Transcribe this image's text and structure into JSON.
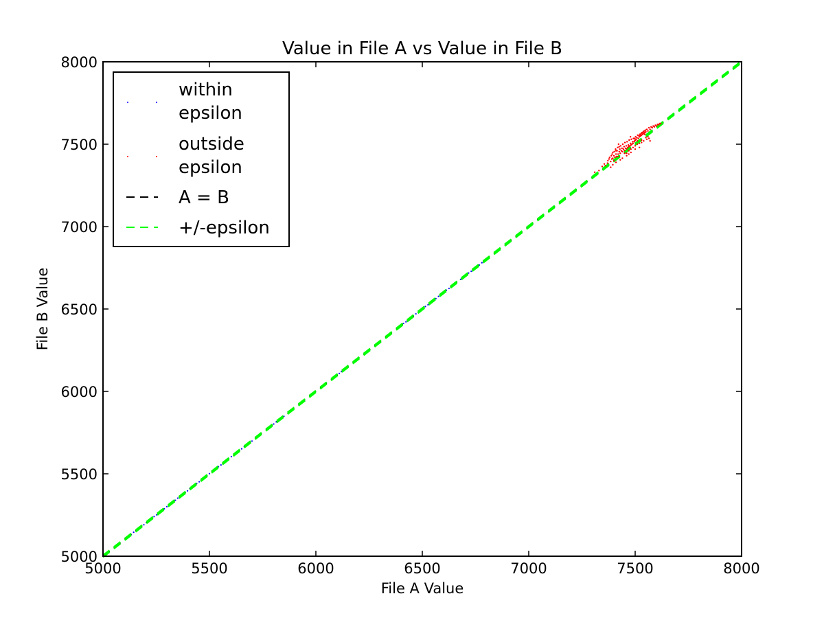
{
  "chart_data": {
    "type": "scatter",
    "title": "Value in File A vs Value in File B",
    "xlabel": "File A Value",
    "ylabel": "File B Value",
    "xlim": [
      5000,
      8000
    ],
    "ylim": [
      5000,
      8000
    ],
    "xticks": [
      5000,
      5500,
      6000,
      6500,
      7000,
      7500,
      8000
    ],
    "yticks": [
      5000,
      5500,
      6000,
      6500,
      7000,
      7500,
      8000
    ],
    "grid": false,
    "legend_position": "top-left",
    "series": [
      {
        "name": "within epsilon",
        "kind": "points",
        "color": "#0000ff",
        "segments": [
          [
            5120,
            5180
          ],
          [
            5180,
            5300
          ],
          [
            5340,
            5420
          ],
          [
            5440,
            5500
          ],
          [
            5530,
            5700
          ],
          [
            5790,
            5850
          ],
          [
            6100,
            6120
          ],
          [
            6400,
            6470
          ],
          [
            6490,
            6650
          ],
          [
            6680,
            6780
          ],
          [
            7100,
            7120
          ],
          [
            7300,
            7320
          ]
        ]
      },
      {
        "name": "outside epsilon",
        "kind": "points",
        "color": "#ff0000",
        "points": [
          [
            7310,
            7330
          ],
          [
            7330,
            7340
          ],
          [
            7345,
            7365
          ],
          [
            7355,
            7380
          ],
          [
            7360,
            7370
          ],
          [
            7370,
            7385
          ],
          [
            7372,
            7400
          ],
          [
            7380,
            7420
          ],
          [
            7385,
            7395
          ],
          [
            7390,
            7410
          ],
          [
            7392,
            7440
          ],
          [
            7395,
            7415
          ],
          [
            7400,
            7430
          ],
          [
            7402,
            7455
          ],
          [
            7405,
            7420
          ],
          [
            7408,
            7470
          ],
          [
            7410,
            7440
          ],
          [
            7412,
            7425
          ],
          [
            7415,
            7460
          ],
          [
            7418,
            7480
          ],
          [
            7420,
            7440
          ],
          [
            7422,
            7500
          ],
          [
            7425,
            7455
          ],
          [
            7428,
            7470
          ],
          [
            7430,
            7445
          ],
          [
            7432,
            7490
          ],
          [
            7435,
            7460
          ],
          [
            7438,
            7475
          ],
          [
            7440,
            7455
          ],
          [
            7442,
            7500
          ],
          [
            7445,
            7470
          ],
          [
            7448,
            7485
          ],
          [
            7450,
            7462
          ],
          [
            7452,
            7510
          ],
          [
            7455,
            7475
          ],
          [
            7458,
            7490
          ],
          [
            7460,
            7472
          ],
          [
            7462,
            7515
          ],
          [
            7465,
            7480
          ],
          [
            7468,
            7495
          ],
          [
            7470,
            7485
          ],
          [
            7472,
            7525
          ],
          [
            7475,
            7490
          ],
          [
            7478,
            7505
          ],
          [
            7480,
            7495
          ],
          [
            7482,
            7530
          ],
          [
            7485,
            7500
          ],
          [
            7488,
            7515
          ],
          [
            7490,
            7505
          ],
          [
            7492,
            7535
          ],
          [
            7495,
            7515
          ],
          [
            7498,
            7520
          ],
          [
            7500,
            7525
          ],
          [
            7502,
            7545
          ],
          [
            7505,
            7530
          ],
          [
            7508,
            7540
          ],
          [
            7510,
            7520
          ],
          [
            7512,
            7555
          ],
          [
            7515,
            7535
          ],
          [
            7518,
            7550
          ],
          [
            7520,
            7545
          ],
          [
            7522,
            7560
          ],
          [
            7525,
            7550
          ],
          [
            7528,
            7565
          ],
          [
            7530,
            7555
          ],
          [
            7532,
            7570
          ],
          [
            7535,
            7560
          ],
          [
            7538,
            7575
          ],
          [
            7540,
            7565
          ],
          [
            7542,
            7580
          ],
          [
            7545,
            7570
          ],
          [
            7548,
            7585
          ],
          [
            7550,
            7575
          ],
          [
            7555,
            7590
          ],
          [
            7560,
            7580
          ],
          [
            7565,
            7600
          ],
          [
            7570,
            7590
          ],
          [
            7575,
            7605
          ],
          [
            7580,
            7600
          ],
          [
            7585,
            7610
          ],
          [
            7590,
            7605
          ],
          [
            7595,
            7615
          ],
          [
            7600,
            7610
          ],
          [
            7605,
            7620
          ],
          [
            7610,
            7618
          ],
          [
            7615,
            7625
          ],
          [
            7620,
            7625
          ],
          [
            7400,
            7400
          ],
          [
            7420,
            7425
          ],
          [
            7450,
            7445
          ],
          [
            7480,
            7470
          ],
          [
            7500,
            7490
          ],
          [
            7520,
            7505
          ],
          [
            7540,
            7520
          ],
          [
            7555,
            7530
          ],
          [
            7440,
            7415
          ],
          [
            7460,
            7430
          ],
          [
            7480,
            7450
          ],
          [
            7500,
            7470
          ],
          [
            7520,
            7480
          ],
          [
            7530,
            7525
          ],
          [
            7510,
            7500
          ],
          [
            7490,
            7480
          ],
          [
            7470,
            7460
          ],
          [
            7460,
            7445
          ],
          [
            7385,
            7360
          ],
          [
            7395,
            7375
          ],
          [
            7410,
            7390
          ],
          [
            7430,
            7405
          ],
          [
            7470,
            7440
          ],
          [
            7530,
            7510
          ],
          [
            7550,
            7540
          ],
          [
            7560,
            7545
          ],
          [
            7570,
            7520
          ],
          [
            7565,
            7535
          ],
          [
            7525,
            7555
          ],
          [
            7535,
            7570
          ],
          [
            7545,
            7560
          ],
          [
            7498,
            7535
          ],
          [
            7478,
            7545
          ],
          [
            7410,
            7460
          ],
          [
            7425,
            7485
          ],
          [
            7395,
            7450
          ],
          [
            7388,
            7430
          ],
          [
            7377,
            7410
          ]
        ]
      },
      {
        "name": "A = B",
        "kind": "line",
        "style": "dashed",
        "color": "#000000",
        "x": [
          5000,
          8000
        ],
        "y": [
          5000,
          8000
        ]
      },
      {
        "name": "+/-epsilon",
        "kind": "line",
        "style": "dashed",
        "color": "#00ff00",
        "epsilon": 5,
        "x": [
          5000,
          8000
        ],
        "y": [
          5000,
          8000
        ]
      }
    ],
    "legend": [
      {
        "line1": "within",
        "line2": "epsilon"
      },
      {
        "line1": "outside",
        "line2": "epsilon"
      },
      {
        "line1": "A = B",
        "line2": ""
      },
      {
        "line1": "+/-epsilon",
        "line2": ""
      }
    ]
  }
}
